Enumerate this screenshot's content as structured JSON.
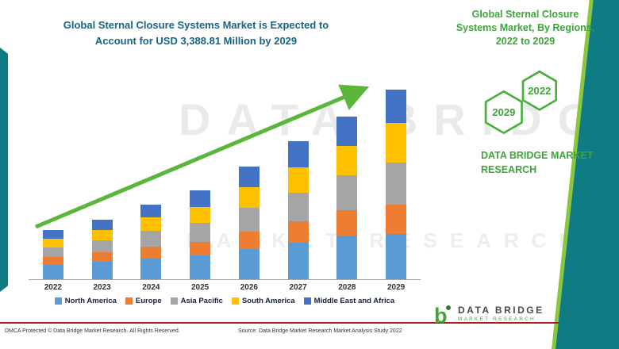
{
  "titles": {
    "main": "Global Sternal Closure Systems Market is Expected to Account for USD 3,388.81 Million by 2029",
    "side": "Global Sternal Closure Systems Market, By Regions, 2022 to 2029"
  },
  "watermark": {
    "line1": "DATA BRIDGE",
    "line2": "MARKET RESEARCH"
  },
  "side_panel": {
    "hex_top_right": "2022",
    "hex_bottom_left": "2029",
    "brand": "DATA BRIDGE MARKET RESEARCH"
  },
  "logo": {
    "title": "DATA BRIDGE",
    "subtitle": "MARKET RESEARCH"
  },
  "footer": {
    "dmca": "DMCA Protected © Data Bridge Market Research· All Rights Reserved.",
    "source": "Source: Data Bridge Market Research Market Analysis Study 2022"
  },
  "colors": {
    "teal_band": "#0e7c82",
    "accent_green": "#8CC63F",
    "title_blue": "#156686",
    "brand_green": "#3da539",
    "arrow_green": "#5cb63c",
    "divider_red": "#a51d1d"
  },
  "chart_data": {
    "type": "bar",
    "stacked": true,
    "title": "Global Sternal Closure Systems Market, By Regions, 2022 to 2029",
    "categories": [
      "2022",
      "2023",
      "2024",
      "2025",
      "2026",
      "2027",
      "2028",
      "2029"
    ],
    "series": [
      {
        "name": "North America",
        "color": "#5B9BD5",
        "values": [
          18,
          22,
          26,
          30,
          38,
          46,
          55,
          57
        ]
      },
      {
        "name": "Europe",
        "color": "#ED7D31",
        "values": [
          10,
          12,
          15,
          17,
          22,
          27,
          32,
          37
        ]
      },
      {
        "name": "Asia Pacific",
        "color": "#A5A5A5",
        "values": [
          12,
          15,
          20,
          24,
          30,
          36,
          44,
          53
        ]
      },
      {
        "name": "South America",
        "color": "#FFC000",
        "values": [
          11,
          13,
          17,
          20,
          26,
          32,
          37,
          50
        ]
      },
      {
        "name": "Middle East and Africa",
        "color": "#4472C4",
        "values": [
          11,
          13,
          16,
          21,
          26,
          33,
          37,
          42
        ]
      }
    ],
    "value_note": "relative stacked heights; no y-axis shown in figure",
    "legend_position": "bottom",
    "annotations": [
      "upward green trend arrow from 2022 bar to above 2029 bar"
    ]
  }
}
